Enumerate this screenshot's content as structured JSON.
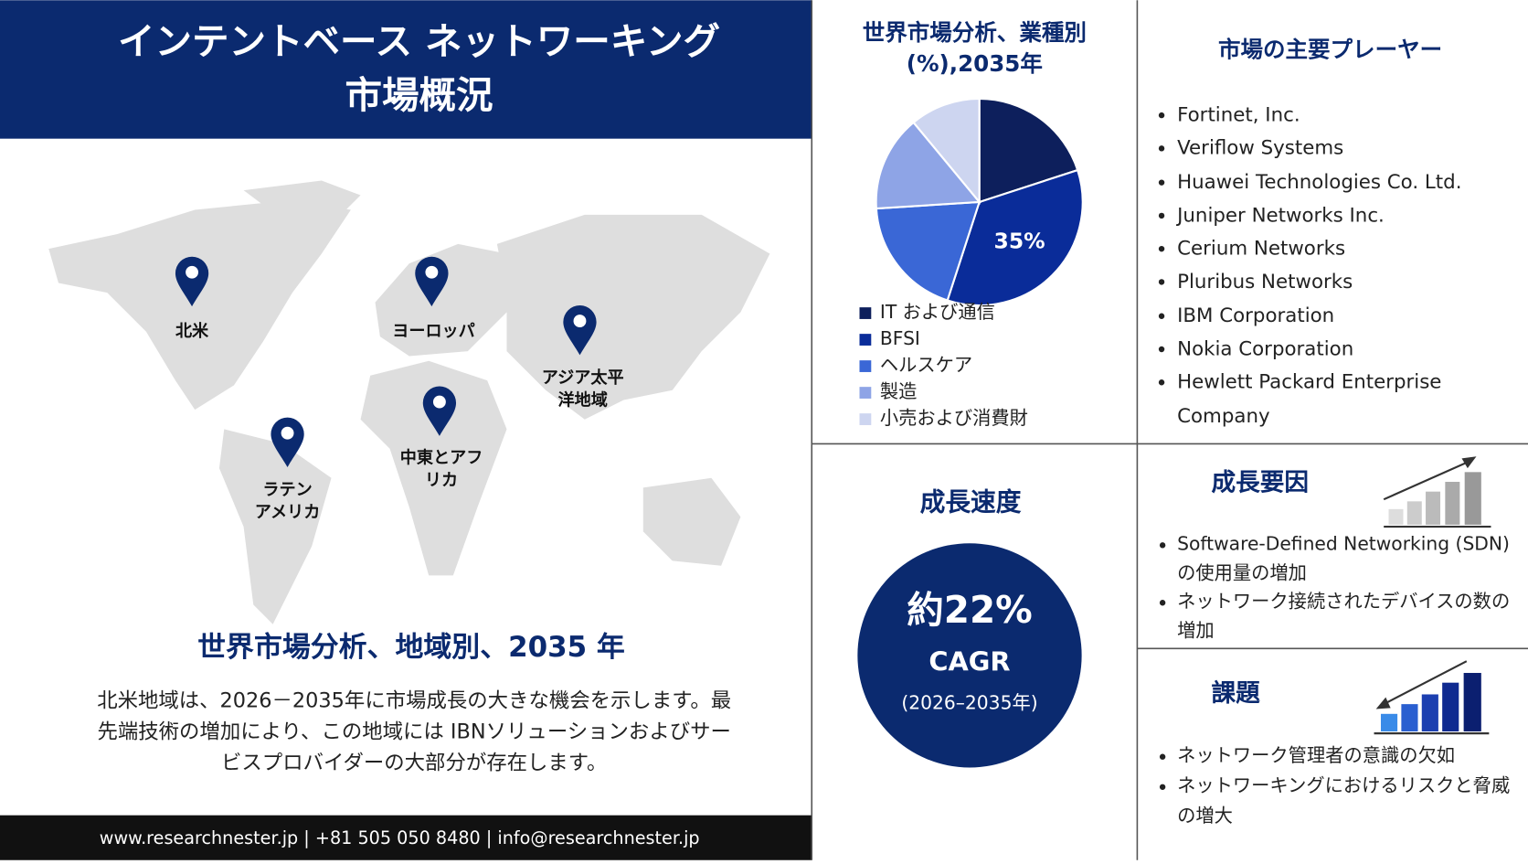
{
  "header": {
    "title_lines": [
      "インテントベース ネットワーキング",
      "市場概況"
    ]
  },
  "map": {
    "regions": [
      {
        "label_lines": [
          "北米"
        ]
      },
      {
        "label_lines": [
          "ヨーロッパ"
        ]
      },
      {
        "label_lines": [
          "アジア太平",
          "洋地域"
        ]
      },
      {
        "label_lines": [
          "中東とアフ",
          "リカ"
        ]
      },
      {
        "label_lines": [
          "ラテン",
          "アメリカ"
        ]
      }
    ],
    "heading": "世界市場分析、地域別、2035 年",
    "description": "北米地域は、2026－2035年に市場成長の大きな機会を示します。最先端技術の増加により、この地域には IBNソリューションおよびサービスプロバイダーの大部分が存在します。"
  },
  "footer": "www.researchnester.jp | +81 505 050 8480 | info@researchnester.jp",
  "chart_data": {
    "type": "pie",
    "title": "世界市場分析、業種別(%),2035年",
    "categories": [
      "IT および通信",
      "BFSI",
      "ヘルスケア",
      "製造",
      "小売および消費財"
    ],
    "values": [
      20,
      35,
      19,
      15,
      11
    ],
    "value_labels": [
      null,
      "35%",
      null,
      null,
      null
    ],
    "colors": [
      "#0d1f5c",
      "#0a2c99",
      "#3a67d6",
      "#8ea4e6",
      "#cdd5f0"
    ]
  },
  "players": {
    "title": "市場の主要プレーヤー",
    "items": [
      "Fortinet, Inc.",
      "Veriflow Systems",
      "Huawei Technologies Co. Ltd.",
      "Juniper Networks Inc.",
      "Cerium Networks",
      "Pluribus Networks",
      "IBM Corporation",
      "Nokia Corporation",
      "Hewlett Packard Enterprise Company"
    ]
  },
  "growth": {
    "title": "成長速度",
    "value": "約22%",
    "metric": "CAGR",
    "period": "(2026–2035年)"
  },
  "drivers": {
    "title": "成長要因",
    "items": [
      "Software-Defined Networking (SDN) の使用量の増加",
      "ネットワーク接続されたデバイスの数の増加"
    ]
  },
  "challenges": {
    "title": "課題",
    "items": [
      "ネットワーク管理者の意識の欠如",
      "ネットワーキングにおけるリスクと脅威の増大"
    ]
  }
}
